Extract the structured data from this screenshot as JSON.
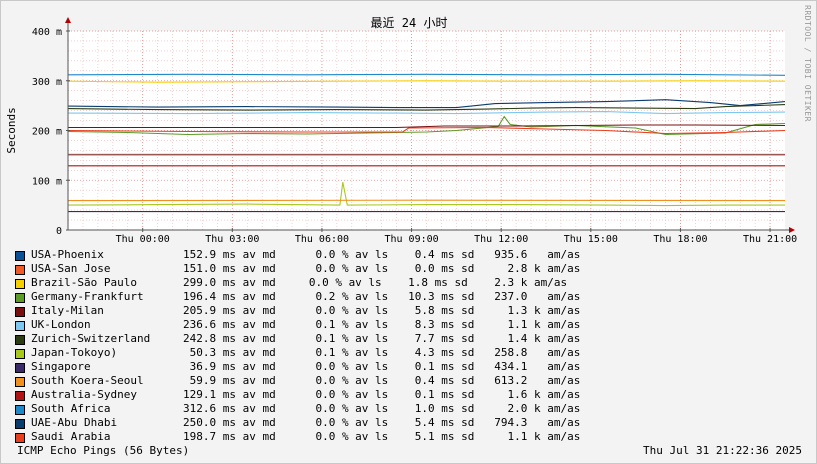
{
  "chart_data": {
    "type": "line",
    "title": "最近 24 小时",
    "ylabel": "Seconds",
    "ylim": [
      0,
      400
    ],
    "y_ticks": [
      {
        "v": 0,
        "label": "0"
      },
      {
        "v": 100,
        "label": "100 m"
      },
      {
        "v": 200,
        "label": "200 m"
      },
      {
        "v": 300,
        "label": "300 m"
      },
      {
        "v": 400,
        "label": "400 m"
      }
    ],
    "xlim": [
      0,
      24
    ],
    "x_ticks": [
      {
        "v": 2.5,
        "label": "Thu 00:00"
      },
      {
        "v": 5.5,
        "label": "Thu 03:00"
      },
      {
        "v": 8.5,
        "label": "Thu 06:00"
      },
      {
        "v": 11.5,
        "label": "Thu 09:00"
      },
      {
        "v": 14.5,
        "label": "Thu 12:00"
      },
      {
        "v": 17.5,
        "label": "Thu 15:00"
      },
      {
        "v": 20.5,
        "label": "Thu 18:00"
      },
      {
        "v": 23.5,
        "label": "Thu 21:00"
      }
    ],
    "grid": true,
    "legend_position": "bottom",
    "series": [
      {
        "name": "USA-Phoenix",
        "color": "#0b4f94",
        "stats": "152.9 ms av md      0.0 % av ls    0.4 ms sd   935.6   am/as",
        "points": [
          [
            0,
            152
          ],
          [
            24,
            152
          ]
        ]
      },
      {
        "name": "USA-San Jose",
        "color": "#f05a28",
        "stats": "151.0 ms av md      0.0 % av ls    0.0 ms sd     2.8 k am/as",
        "points": [
          [
            0,
            151
          ],
          [
            24,
            151
          ]
        ]
      },
      {
        "name": "Brazil-São Paulo",
        "color": "#f5d000",
        "stats": "299.0 ms av md     0.0 % av ls    1.8 ms sd    2.3 k am/as",
        "points": [
          [
            0,
            299
          ],
          [
            3,
            297
          ],
          [
            6,
            298
          ],
          [
            9,
            299
          ],
          [
            12,
            300
          ],
          [
            15,
            299
          ],
          [
            18,
            299
          ],
          [
            21,
            300
          ],
          [
            24,
            299
          ]
        ]
      },
      {
        "name": "Germany-Frankfurt",
        "color": "#5b9b28",
        "stats": "196.4 ms av md      0.2 % av ls   10.3 ms sd   237.0   am/as",
        "points": [
          [
            0,
            198
          ],
          [
            2,
            196
          ],
          [
            4,
            192
          ],
          [
            6,
            194
          ],
          [
            8,
            193
          ],
          [
            10,
            195
          ],
          [
            12,
            197
          ],
          [
            13,
            200
          ],
          [
            14.4,
            208
          ],
          [
            14.6,
            228
          ],
          [
            14.8,
            212
          ],
          [
            15.5,
            207
          ],
          [
            17,
            210
          ],
          [
            19,
            205
          ],
          [
            20,
            192
          ],
          [
            22,
            195
          ],
          [
            23,
            212
          ],
          [
            24,
            214
          ]
        ]
      },
      {
        "name": "Italy-Milan",
        "color": "#7a0f0f",
        "stats": "205.9 ms av md      0.0 % av ls    5.8 ms sd     1.3 k am/as",
        "points": [
          [
            0,
            206
          ],
          [
            5,
            206
          ],
          [
            11,
            206
          ],
          [
            12.6,
            209
          ],
          [
            15,
            209
          ],
          [
            17,
            210
          ],
          [
            19,
            211
          ],
          [
            21,
            211
          ],
          [
            24,
            210
          ]
        ]
      },
      {
        "name": "UK-London",
        "color": "#7cc8f0",
        "stats": "236.6 ms av md      0.1 % av ls    8.3 ms sd     1.1 k am/as",
        "points": [
          [
            0,
            235
          ],
          [
            4,
            234
          ],
          [
            8,
            236
          ],
          [
            11,
            235
          ],
          [
            13,
            234
          ],
          [
            16,
            237
          ],
          [
            18,
            238
          ],
          [
            20,
            234
          ],
          [
            22,
            236
          ],
          [
            24,
            237
          ]
        ]
      },
      {
        "name": "Zurich-Switzerland",
        "color": "#2c3d14",
        "stats": "242.8 ms av md      0.1 % av ls    7.7 ms sd     1.4 k am/as",
        "points": [
          [
            0,
            244
          ],
          [
            3,
            242
          ],
          [
            6,
            241
          ],
          [
            9,
            242
          ],
          [
            12,
            241
          ],
          [
            14,
            243
          ],
          [
            15.5,
            245
          ],
          [
            17,
            246
          ],
          [
            19,
            245
          ],
          [
            21,
            244
          ],
          [
            22,
            248
          ],
          [
            24,
            252
          ]
        ]
      },
      {
        "name": "Japan-Tokoyo)",
        "color": "#a8c81e",
        "stats": " 50.3 ms av md      0.1 % av ls    4.3 ms sd   258.8   am/as",
        "points": [
          [
            0,
            50
          ],
          [
            3,
            51
          ],
          [
            6,
            52
          ],
          [
            9.1,
            50
          ],
          [
            9.2,
            96
          ],
          [
            9.35,
            50
          ],
          [
            12,
            51
          ],
          [
            15,
            51
          ],
          [
            18,
            50
          ],
          [
            20,
            49
          ],
          [
            22,
            50
          ],
          [
            24,
            50
          ]
        ]
      },
      {
        "name": "Singapore",
        "color": "#3a2a6a",
        "stats": " 36.9 ms av md      0.0 % av ls    0.1 ms sd   434.1   am/as",
        "points": [
          [
            0,
            37
          ],
          [
            24,
            37
          ]
        ]
      },
      {
        "name": "South Koera-Seoul",
        "color": "#f0901e",
        "stats": " 59.9 ms av md      0.0 % av ls    0.4 ms sd   613.2   am/as",
        "points": [
          [
            0,
            59
          ],
          [
            12,
            60
          ],
          [
            24,
            59
          ]
        ]
      },
      {
        "name": "Australia-Sydney",
        "color": "#b01414",
        "stats": "129.1 ms av md      0.0 % av ls    0.1 ms sd     1.6 k am/as",
        "points": [
          [
            0,
            129
          ],
          [
            24,
            129
          ]
        ]
      },
      {
        "name": "South Africa",
        "color": "#1e88c8",
        "stats": "312.6 ms av md      0.0 % av ls    1.0 ms sd     2.0 k am/as",
        "points": [
          [
            0,
            312
          ],
          [
            4,
            313
          ],
          [
            8,
            312
          ],
          [
            12,
            313
          ],
          [
            16,
            312
          ],
          [
            20,
            313
          ],
          [
            24,
            311
          ]
        ]
      },
      {
        "name": "UAE-Abu Dhabi",
        "color": "#0a3c6e",
        "stats": "250.0 ms av md      0.0 % av ls    5.4 ms sd   794.3   am/as",
        "points": [
          [
            0,
            249
          ],
          [
            3,
            247
          ],
          [
            6,
            248
          ],
          [
            9,
            247
          ],
          [
            11,
            246
          ],
          [
            13,
            246
          ],
          [
            14.3,
            254
          ],
          [
            16,
            256
          ],
          [
            18,
            258
          ],
          [
            20,
            262
          ],
          [
            21.5,
            256
          ],
          [
            22.5,
            250
          ],
          [
            24,
            258
          ]
        ]
      },
      {
        "name": "Saudi Arabia",
        "color": "#e8401e",
        "stats": "198.7 ms av md      0.0 % av ls    5.1 ms sd     1.1 k am/as",
        "points": [
          [
            0,
            200
          ],
          [
            4,
            198
          ],
          [
            8,
            197
          ],
          [
            11.2,
            197
          ],
          [
            11.4,
            205
          ],
          [
            14,
            206
          ],
          [
            16,
            203
          ],
          [
            18,
            200
          ],
          [
            20,
            194
          ],
          [
            22,
            196
          ],
          [
            24,
            200
          ]
        ]
      }
    ]
  },
  "footer": {
    "title": "ICMP Echo Pings (56 Bytes)",
    "timestamp": "Thu Jul 31 21:22:36 2025"
  },
  "watermark": "RRDTOOL / TOBI OETIKER"
}
